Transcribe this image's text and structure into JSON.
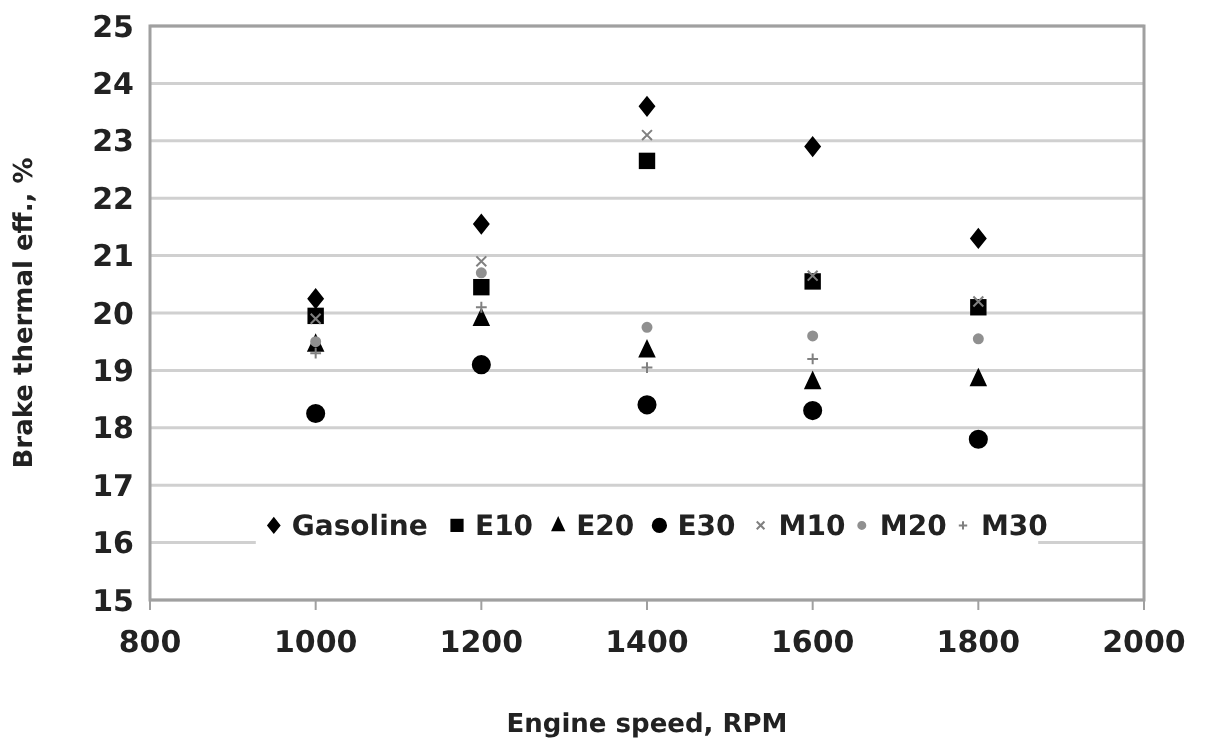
{
  "chart_data": {
    "type": "scatter",
    "xlabel": "Engine speed, RPM",
    "ylabel": "Brake thermal eff., %",
    "x": [
      1000,
      1200,
      1400,
      1600,
      1800
    ],
    "xlim": [
      800,
      2000
    ],
    "xticks": [
      800,
      1000,
      1200,
      1400,
      1600,
      1800,
      2000
    ],
    "ylim": [
      15,
      25
    ],
    "yticks": [
      15,
      16,
      17,
      18,
      19,
      20,
      21,
      22,
      23,
      24,
      25
    ],
    "grid": "y",
    "legend": "bottom",
    "series": [
      {
        "name": "Gasoline",
        "color": "#000000",
        "marker": "diamond",
        "values": [
          20.25,
          21.55,
          23.6,
          22.9,
          21.3
        ]
      },
      {
        "name": "E10",
        "color": "#000000",
        "marker": "square",
        "values": [
          19.95,
          20.45,
          22.65,
          20.55,
          20.1
        ]
      },
      {
        "name": "E20",
        "color": "#000000",
        "marker": "triangle",
        "values": [
          19.45,
          19.9,
          19.35,
          18.8,
          18.85
        ]
      },
      {
        "name": "E30",
        "color": "#000000",
        "marker": "circle",
        "values": [
          18.25,
          19.1,
          18.4,
          18.3,
          17.8
        ]
      },
      {
        "name": "M10",
        "color": "#808080",
        "marker": "cross",
        "values": [
          19.9,
          20.9,
          23.1,
          20.65,
          20.2
        ]
      },
      {
        "name": "M20",
        "color": "#909090",
        "marker": "circle",
        "values": [
          19.5,
          20.7,
          19.75,
          19.6,
          19.55
        ]
      },
      {
        "name": "M30",
        "color": "#808080",
        "marker": "plus",
        "values": [
          19.3,
          20.1,
          19.05,
          19.2,
          null
        ]
      }
    ]
  }
}
